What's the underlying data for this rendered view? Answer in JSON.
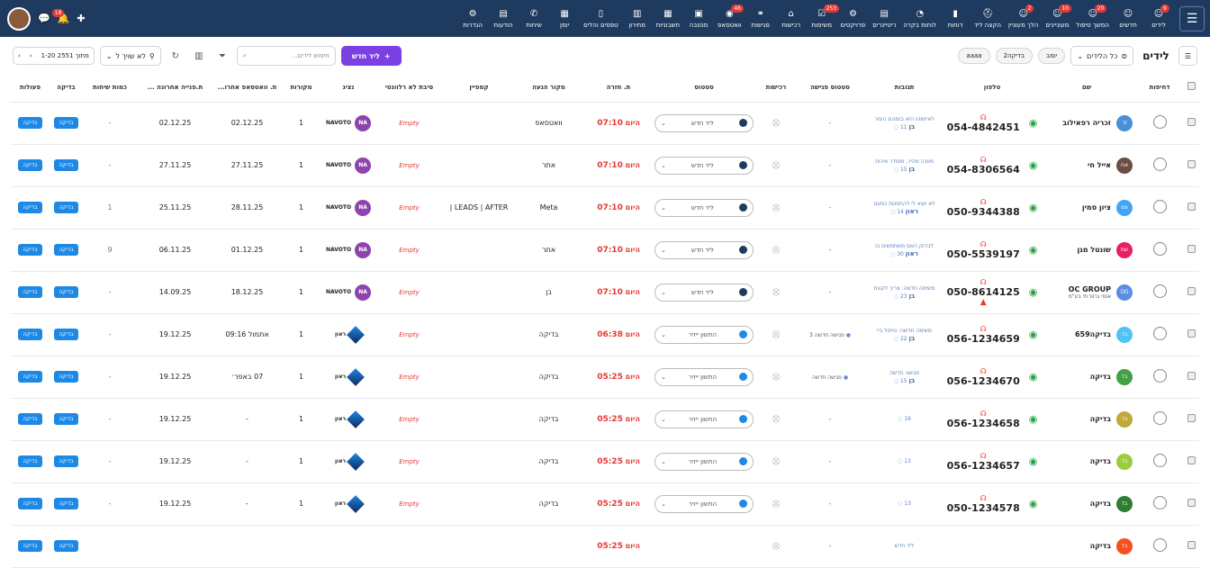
{
  "nav": {
    "items": [
      {
        "label": "לידים",
        "icon": "user-icon",
        "badge": "9"
      },
      {
        "label": "חדשים",
        "icon": "user-icon",
        "badge": ""
      },
      {
        "label": "המשך טיפול",
        "icon": "user-icon",
        "badge": "20"
      },
      {
        "label": "מעוניינים",
        "icon": "user-icon",
        "badge": "10"
      },
      {
        "label": "הלך מעוניין",
        "icon": "user-icon",
        "badge": "2"
      },
      {
        "label": "הקצה ליד",
        "icon": "hat-icon",
        "badge": ""
      },
      {
        "label": "דוחות",
        "icon": "chart-icon",
        "badge": ""
      },
      {
        "label": "לוחות בקרה",
        "icon": "gauge-icon",
        "badge": ""
      },
      {
        "label": "ריטיינרים",
        "icon": "doc-icon",
        "badge": ""
      },
      {
        "label": "פרויקטים",
        "icon": "bike-icon",
        "badge": ""
      },
      {
        "label": "משימות",
        "icon": "task-icon",
        "badge": "253"
      },
      {
        "label": "רכישות",
        "icon": "bag-icon",
        "badge": ""
      },
      {
        "label": "פגישות",
        "icon": "handshake-icon",
        "badge": ""
      },
      {
        "label": "וואטסאפ",
        "icon": "whatsapp-icon",
        "badge": "46"
      },
      {
        "label": "מנטבה",
        "icon": "box-icon",
        "badge": ""
      },
      {
        "label": "חשבוניות",
        "icon": "invoice-icon",
        "badge": ""
      },
      {
        "label": "מחירון",
        "icon": "barcode-icon",
        "badge": ""
      },
      {
        "label": "טפסים והלים",
        "icon": "form-icon",
        "badge": ""
      },
      {
        "label": "יומן",
        "icon": "calendar-icon",
        "badge": ""
      },
      {
        "label": "שיחות",
        "icon": "phone-icon",
        "badge": ""
      },
      {
        "label": "הודעות",
        "icon": "message-icon",
        "badge": ""
      },
      {
        "label": "הגדרות",
        "icon": "gear-icon",
        "badge": ""
      }
    ],
    "notif_badge": "18"
  },
  "toolbar": {
    "title": "לידים",
    "filter_select": "כל הלידים",
    "pills": [
      "יומב",
      "בדיקה2",
      "aaaa"
    ],
    "new_lead": "ליד חדש",
    "search_placeholder": "חיפוש לידים...",
    "assign_filter": "לא שויך ל",
    "pager_text": "1-20 מתוך 2551"
  },
  "columns": [
    "דחיפות",
    "שם",
    "טלפון",
    "תגובות",
    "סטטוס פגישה",
    "רכישות",
    "סטטוס",
    "ת. חזרה",
    "מקור הגעה",
    "קמפיין",
    "סיבת לא רלוונטי",
    "נציג",
    "מקורות",
    "ת. וואטסאפ אחרו...",
    "ת.פנייה אחרונה ...",
    "כמות שיחות",
    "בדיקה",
    "פעולות"
  ],
  "rows": [
    {
      "initials": "זר",
      "avcolor": "#4a90d9",
      "name": "זכריה רפאילוב",
      "sub": "",
      "phone": "054-4842451",
      "warn": false,
      "resp_text": "לאיזשהו היא בזמהם העזר",
      "resp_count": "11",
      "resp_tag": "בן",
      "meeting": "",
      "meeting_color": "",
      "status": "ליד חדש",
      "status_dot": "dark",
      "date_prefix": "היום",
      "date_time": "07:10",
      "source": "וואטסאפ",
      "campaign": "",
      "reason": "Empty",
      "agent_type": "na",
      "agent_name": "NAVOTO",
      "sources_count": "1",
      "wa_date": "02.12.25",
      "last_contact": "02.12.25",
      "calls": "-"
    },
    {
      "initials": "אח",
      "avcolor": "#6d4c41",
      "name": "אייל חי",
      "sub": "",
      "phone": "054-8306564",
      "warn": false,
      "resp_text": "מענה מהיר, מסודר איכות",
      "resp_count": "15",
      "resp_tag": "בן",
      "meeting": "",
      "meeting_color": "",
      "status": "ליד חדש",
      "status_dot": "dark",
      "date_prefix": "היום",
      "date_time": "07:10",
      "source": "אתר",
      "campaign": "",
      "reason": "Empty",
      "agent_type": "na",
      "agent_name": "NAVOTO",
      "sources_count": "1",
      "wa_date": "27.11.25",
      "last_contact": "27.11.25",
      "calls": "-"
    },
    {
      "initials": "צס",
      "avcolor": "#42a5f5",
      "name": "ציון סמין",
      "sub": "",
      "phone": "050-9344388",
      "warn": false,
      "resp_text": "לא יוצא לי להתפנות כמעט",
      "resp_count": "14",
      "resp_tag": "ראון",
      "meeting": "",
      "meeting_color": "",
      "status": "ליד חדש",
      "status_dot": "dark",
      "date_prefix": "היום",
      "date_time": "07:10",
      "source": "Meta",
      "campaign": "LEADS | AFTER |",
      "reason": "Empty",
      "agent_type": "na",
      "agent_name": "NAVOTO",
      "sources_count": "1",
      "wa_date": "28.11.25",
      "last_contact": "25.11.25",
      "calls": "1"
    },
    {
      "initials": "שמ",
      "avcolor": "#e91e63",
      "name": "שונטל מגן",
      "sub": "",
      "phone": "050-5539197",
      "warn": false,
      "resp_text": "לבדוק האם משתמשים בו",
      "resp_count": "30",
      "resp_tag": "ראון",
      "meeting": "",
      "meeting_color": "",
      "status": "ליד חדש",
      "status_dot": "dark",
      "date_prefix": "היום",
      "date_time": "07:10",
      "source": "אתר",
      "campaign": "",
      "reason": "Empty",
      "agent_type": "na",
      "agent_name": "NAVOTO",
      "sources_count": "1",
      "wa_date": "01.12.25",
      "last_contact": "06.11.25",
      "calls": "9"
    },
    {
      "initials": "OG",
      "avcolor": "#5c8de0",
      "name": "OC GROUP",
      "sub": "אוסי גרופ תי בע\"מ",
      "phone": "050-8614125",
      "warn": true,
      "resp_text": "משימה חדשה: צריך לקנות",
      "resp_count": "23",
      "resp_tag": "בן",
      "meeting": "",
      "meeting_color": "",
      "status": "ליד חדש",
      "status_dot": "dark",
      "date_prefix": "היום",
      "date_time": "07:10",
      "source": "בן",
      "campaign": "",
      "reason": "Empty",
      "agent_type": "na",
      "agent_name": "NAVOTO",
      "sources_count": "1",
      "wa_date": "18.12.25",
      "last_contact": "14.09.25",
      "calls": "-"
    },
    {
      "initials": "בד",
      "avcolor": "#4fc3f7",
      "name": "בדיקה659",
      "sub": "",
      "phone": "056-1234659",
      "warn": false,
      "resp_text": "משימה חדשה: טיפול ביי",
      "resp_count": "22",
      "resp_tag": "בן",
      "meeting": "פגישה חדשה 3",
      "meeting_color": "blue",
      "status": "התשון ייזיר",
      "status_dot": "blue",
      "date_prefix": "היום",
      "date_time": "06:38",
      "source": "בדיקה",
      "campaign": "",
      "reason": "Empty",
      "agent_type": "diamond",
      "agent_name": "ראון",
      "sources_count": "1",
      "wa_date": "אתמול 09:16",
      "last_contact": "19.12.25",
      "calls": "-"
    },
    {
      "initials": "בד",
      "avcolor": "#43a047",
      "name": "בדיקה",
      "sub": "",
      "phone": "056-1234670",
      "warn": false,
      "resp_text": "פגישה חדשה",
      "resp_count": "15",
      "resp_tag": "בן",
      "meeting": "פגישה חדשה",
      "meeting_color": "blue",
      "status": "התשון ייזיר",
      "status_dot": "blue",
      "date_prefix": "היום",
      "date_time": "05:25",
      "source": "בדיקה",
      "campaign": "",
      "reason": "Empty",
      "agent_type": "diamond",
      "agent_name": "ראון",
      "sources_count": "1",
      "wa_date": "07 באפר׳",
      "last_contact": "19.12.25",
      "calls": "-"
    },
    {
      "initials": "בד",
      "avcolor": "#c0a93a",
      "name": "בדיקה",
      "sub": "",
      "phone": "056-1234658",
      "warn": false,
      "resp_text": "",
      "resp_count": "16",
      "resp_tag": "",
      "meeting": "",
      "meeting_color": "",
      "status": "התשון ייזיר",
      "status_dot": "blue",
      "date_prefix": "היום",
      "date_time": "05:25",
      "source": "בדיקה",
      "campaign": "",
      "reason": "Empty",
      "agent_type": "diamond",
      "agent_name": "ראון",
      "sources_count": "1",
      "wa_date": "-",
      "last_contact": "19.12.25",
      "calls": "-"
    },
    {
      "initials": "בד",
      "avcolor": "#9ccc3d",
      "name": "בדיקה",
      "sub": "",
      "phone": "056-1234657",
      "warn": false,
      "resp_text": "",
      "resp_count": "13",
      "resp_tag": "",
      "meeting": "",
      "meeting_color": "",
      "status": "התשון ייזיר",
      "status_dot": "blue",
      "date_prefix": "היום",
      "date_time": "05:25",
      "source": "בדיקה",
      "campaign": "",
      "reason": "Empty",
      "agent_type": "diamond",
      "agent_name": "ראון",
      "sources_count": "1",
      "wa_date": "-",
      "last_contact": "19.12.25",
      "calls": "-"
    },
    {
      "initials": "בד",
      "avcolor": "#2e7d32",
      "name": "בדיקה",
      "sub": "",
      "phone": "050-1234578",
      "warn": false,
      "resp_text": "",
      "resp_count": "13",
      "resp_tag": "",
      "meeting": "",
      "meeting_color": "",
      "status": "התשון ייזיר",
      "status_dot": "blue",
      "date_prefix": "היום",
      "date_time": "05:25",
      "source": "בדיקה",
      "campaign": "",
      "reason": "Empty",
      "agent_type": "diamond",
      "agent_name": "ראון",
      "sources_count": "1",
      "wa_date": "-",
      "last_contact": "19.12.25",
      "calls": "-"
    },
    {
      "initials": "בד",
      "avcolor": "#f4511e",
      "name": "בדיקה",
      "sub": "",
      "phone": "",
      "warn": false,
      "resp_text": "ליד חדש",
      "resp_count": "",
      "resp_tag": "",
      "meeting": "",
      "meeting_color": "",
      "status": "",
      "status_dot": "blue",
      "date_prefix": "היום",
      "date_time": "05:25",
      "source": "",
      "campaign": "",
      "reason": "",
      "agent_type": "none",
      "agent_name": "",
      "sources_count": "",
      "wa_date": "",
      "last_contact": "",
      "calls": ""
    }
  ],
  "btn_check": "בדיקה"
}
